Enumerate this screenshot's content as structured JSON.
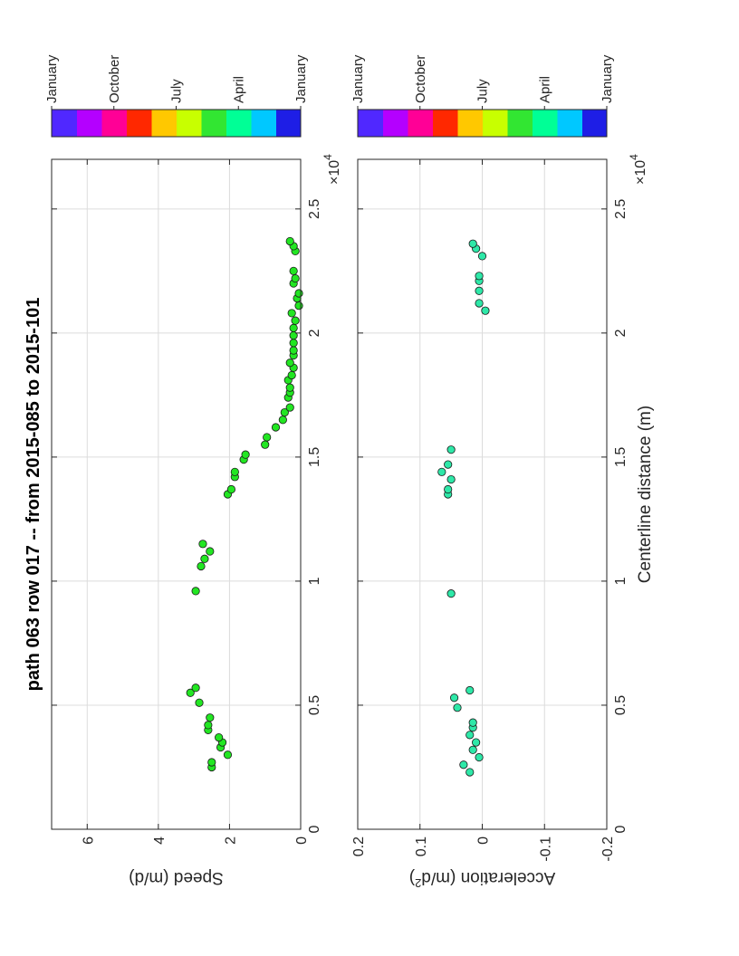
{
  "chart_data": [
    {
      "type": "scatter",
      "title": "path 063 row 017  -- from 2015-085 to 2015-101",
      "xlabel": "",
      "ylabel": "Speed (m/d)",
      "x_exponent_label": "×10",
      "x_exponent_power": "4",
      "xlim": [
        0,
        27000
      ],
      "ylim": [
        0,
        7
      ],
      "xticks": [
        0,
        5000,
        10000,
        15000,
        20000,
        25000
      ],
      "xtick_labels": [
        "0",
        "0.5",
        "1",
        "1.5",
        "2",
        "2.5"
      ],
      "yticks": [
        0,
        2,
        4,
        6
      ],
      "ytick_labels": [
        "0",
        "2",
        "4",
        "6"
      ],
      "grid": true,
      "marker_color": "#22e622",
      "x": [
        2500,
        2700,
        3000,
        3300,
        3500,
        3700,
        4000,
        4200,
        4500,
        5100,
        5500,
        5700,
        9600,
        10600,
        10900,
        11200,
        11500,
        13500,
        13700,
        14200,
        14400,
        14900,
        15100,
        15500,
        15800,
        16200,
        16500,
        16800,
        17000,
        17400,
        17600,
        17800,
        18100,
        18300,
        18600,
        18800,
        19100,
        19300,
        19600,
        19900,
        20200,
        20500,
        20800,
        21100,
        21400,
        21600,
        22000,
        22200,
        22500,
        23300,
        23500,
        23700
      ],
      "y": [
        2.5,
        2.5,
        2.05,
        2.25,
        2.2,
        2.3,
        2.6,
        2.6,
        2.55,
        2.85,
        3.1,
        2.95,
        2.95,
        2.8,
        2.7,
        2.55,
        2.75,
        2.05,
        1.95,
        1.85,
        1.85,
        1.6,
        1.55,
        1.0,
        0.95,
        0.7,
        0.5,
        0.45,
        0.3,
        0.35,
        0.3,
        0.3,
        0.35,
        0.25,
        0.2,
        0.3,
        0.2,
        0.2,
        0.2,
        0.2,
        0.2,
        0.15,
        0.25,
        0.05,
        0.1,
        0.05,
        0.2,
        0.15,
        0.2,
        0.15,
        0.2,
        0.3
      ]
    },
    {
      "type": "scatter",
      "title": "",
      "xlabel": "Centerline distance (m)",
      "ylabel": "Acceleration (m/d",
      "ylabel_superscript": "2",
      "ylabel_suffix": ")",
      "x_exponent_label": "×10",
      "x_exponent_power": "4",
      "xlim": [
        0,
        27000
      ],
      "ylim": [
        -0.2,
        0.2
      ],
      "xticks": [
        0,
        5000,
        10000,
        15000,
        20000,
        25000
      ],
      "xtick_labels": [
        "0",
        "0.5",
        "1",
        "1.5",
        "2",
        "2.5"
      ],
      "yticks": [
        -0.2,
        -0.1,
        0,
        0.1,
        0.2
      ],
      "ytick_labels": [
        "-0.2",
        "-0.1",
        "0",
        "0.1",
        "0.2"
      ],
      "grid": true,
      "marker_color": "#2ee8a8",
      "x": [
        2300,
        2600,
        2900,
        3200,
        3500,
        3800,
        4100,
        4300,
        4900,
        5300,
        5600,
        9500,
        13500,
        13700,
        14100,
        14400,
        14700,
        15300,
        20900,
        21200,
        21700,
        22100,
        22300,
        23100,
        23400,
        23600
      ],
      "y": [
        0.02,
        0.03,
        0.005,
        0.015,
        0.01,
        0.02,
        0.015,
        0.015,
        0.04,
        0.045,
        0.02,
        0.05,
        0.055,
        0.055,
        0.05,
        0.065,
        0.055,
        0.05,
        -0.005,
        0.005,
        0.005,
        0.005,
        0.005,
        0.0,
        0.01,
        0.015
      ]
    }
  ],
  "colorbars": [
    {
      "labels": [
        "January",
        "April",
        "July",
        "October",
        "January"
      ],
      "colors": [
        "#1e1ee6",
        "#00c8ff",
        "#00ff96",
        "#32e632",
        "#c8ff00",
        "#ffc800",
        "#ff2800",
        "#ff0096",
        "#b400ff",
        "#5028ff"
      ]
    },
    {
      "labels": [
        "January",
        "April",
        "July",
        "October",
        "January"
      ],
      "colors": [
        "#1e1ee6",
        "#00c8ff",
        "#00ff96",
        "#32e632",
        "#c8ff00",
        "#ffc800",
        "#ff2800",
        "#ff0096",
        "#b400ff",
        "#5028ff"
      ]
    }
  ]
}
